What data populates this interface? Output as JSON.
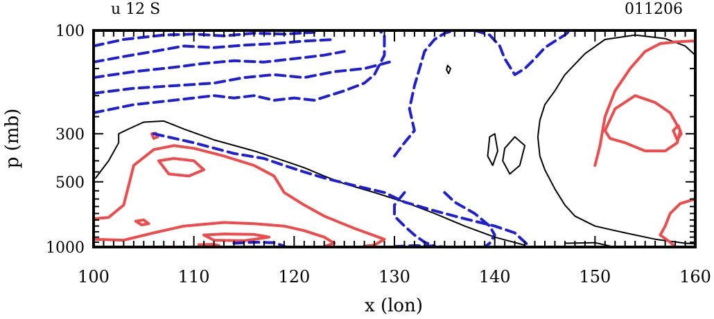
{
  "header": {
    "left_label": "u 12 S",
    "right_label": "011206"
  },
  "chart_data": {
    "type": "contour",
    "xlabel": "x (lon)",
    "ylabel": "p (mb)",
    "xlim": [
      100,
      160
    ],
    "ylim": [
      100,
      1000
    ],
    "yscale": "log",
    "x_ticks": [
      100,
      110,
      120,
      130,
      140,
      150,
      160
    ],
    "y_ticks": [
      100,
      300,
      500,
      1000
    ],
    "grid": false,
    "series": [
      {
        "name": "zero",
        "color": "#000000",
        "style": "solid",
        "contours": [
          [
            [
              100.2,
              480
            ],
            [
              101.5,
              400
            ],
            [
              102.5,
              330
            ],
            [
              102.5,
              300
            ],
            [
              103.5,
              285
            ],
            [
              105,
              265
            ],
            [
              107,
              262
            ],
            [
              109,
              285
            ],
            [
              112,
              320
            ],
            [
              116,
              360
            ],
            [
              119,
              400
            ],
            [
              121,
              430
            ],
            [
              123,
              470
            ],
            [
              125,
              510
            ],
            [
              128,
              560
            ],
            [
              131,
              620
            ],
            [
              134,
              700
            ],
            [
              137,
              800
            ],
            [
              140,
              900
            ],
            [
              143,
              980
            ]
          ],
          [
            [
              147,
              960
            ],
            [
              150,
              955
            ],
            [
              151.5,
              990
            ]
          ],
          [
            [
              160,
              130
            ],
            [
              159,
              118
            ],
            [
              157,
              109
            ],
            [
              154,
              105
            ],
            [
              151,
              110
            ],
            [
              149,
              128
            ],
            [
              147,
              160
            ],
            [
              146,
              190
            ],
            [
              145,
              220
            ],
            [
              144.5,
              260
            ],
            [
              144.3,
              310
            ],
            [
              144.5,
              380
            ],
            [
              145,
              440
            ],
            [
              146,
              540
            ],
            [
              147,
              640
            ],
            [
              148,
              720
            ],
            [
              150,
              800
            ],
            [
              153,
              860
            ],
            [
              156,
              920
            ],
            [
              159,
              960
            ],
            [
              160,
              965
            ]
          ],
          [
            [
              141,
              350
            ],
            [
              142,
              310
            ],
            [
              143,
              340
            ],
            [
              142.5,
              420
            ],
            [
              141.5,
              460
            ],
            [
              140.8,
              400
            ],
            [
              141,
              350
            ]
          ],
          [
            [
              139.5,
              310
            ],
            [
              140,
              300
            ],
            [
              140.3,
              360
            ],
            [
              139.8,
              420
            ],
            [
              139.3,
              380
            ],
            [
              139.5,
              310
            ]
          ],
          [
            [
              135.3,
              145
            ],
            [
              135.6,
              150
            ],
            [
              135.4,
              158
            ],
            [
              135.2,
              152
            ],
            [
              135.3,
              145
            ]
          ]
        ]
      },
      {
        "name": "positive",
        "color": "#f04a4a",
        "style": "solid",
        "contours": [
          [
            [
              100,
              740
            ],
            [
              101.5,
              730
            ],
            [
              103,
              640
            ],
            [
              103.5,
              520
            ],
            [
              104,
              420
            ],
            [
              106,
              355
            ],
            [
              108,
              340
            ],
            [
              110,
              350
            ],
            [
              113,
              380
            ],
            [
              116,
              420
            ],
            [
              118,
              470
            ],
            [
              119,
              560
            ],
            [
              121,
              640
            ],
            [
              123,
              720
            ],
            [
              126,
              820
            ],
            [
              129,
              920
            ],
            [
              128,
              980
            ],
            [
              127,
              990
            ]
          ],
          [
            [
              100,
              920
            ],
            [
              103,
              930
            ],
            [
              106,
              860
            ],
            [
              109,
              800
            ],
            [
              113,
              770
            ],
            [
              116,
              780
            ],
            [
              119,
              800
            ],
            [
              121,
              840
            ],
            [
              123,
              900
            ],
            [
              124,
              960
            ],
            [
              123,
              995
            ]
          ],
          [
            [
              106.5,
              400
            ],
            [
              108,
              390
            ],
            [
              110,
              400
            ],
            [
              111,
              440
            ],
            [
              109.5,
              470
            ],
            [
              107.5,
              460
            ],
            [
              106.5,
              400
            ]
          ],
          [
            [
              111,
              880
            ],
            [
              113,
              870
            ],
            [
              116,
              875
            ],
            [
              117.5,
              900
            ],
            [
              115,
              935
            ],
            [
              112,
              930
            ],
            [
              111,
              880
            ]
          ],
          [
            [
              110.5,
              975
            ],
            [
              112,
              972
            ],
            [
              112.5,
              985
            ],
            [
              111,
              990
            ],
            [
              110.5,
              975
            ]
          ],
          [
            [
              104.2,
              760
            ],
            [
              105,
              750
            ],
            [
              105.5,
              780
            ],
            [
              104.8,
              790
            ],
            [
              104.2,
              760
            ]
          ],
          [
            [
              105.8,
              300
            ],
            [
              106.2,
              298
            ],
            [
              106.4,
              310
            ],
            [
              106,
              315
            ],
            [
              105.8,
              300
            ]
          ],
          [
            [
              150,
              420
            ],
            [
              150.5,
              340
            ],
            [
              151,
              250
            ],
            [
              152,
              190
            ],
            [
              153.5,
              150
            ],
            [
              155,
              125
            ],
            [
              156.5,
              115
            ],
            [
              158,
              113
            ],
            [
              159.5,
              112
            ],
            [
              160,
              112
            ]
          ],
          [
            [
              160,
              600
            ],
            [
              158.5,
              630
            ],
            [
              157.5,
              700
            ],
            [
              157,
              800
            ],
            [
              156.5,
              880
            ],
            [
              157.5,
              950
            ],
            [
              158,
              1000
            ]
          ],
          [
            [
              151,
              290
            ],
            [
              152,
              230
            ],
            [
              154,
              200
            ],
            [
              156,
              215
            ],
            [
              157.5,
              240
            ],
            [
              158.5,
              290
            ],
            [
              158.2,
              330
            ],
            [
              157,
              360
            ],
            [
              155,
              360
            ],
            [
              153,
              330
            ],
            [
              151.5,
              315
            ],
            [
              151,
              290
            ]
          ],
          [
            [
              157.8,
              290
            ],
            [
              158.3,
              275
            ],
            [
              158.6,
              300
            ],
            [
              158.2,
              320
            ],
            [
              157.8,
              290
            ]
          ]
        ]
      },
      {
        "name": "negative",
        "color": "#1e1ed6",
        "style": "dashed",
        "contours": [
          [
            [
              100,
              118
            ],
            [
              103,
              110
            ],
            [
              107,
              105
            ],
            [
              110,
              104
            ],
            [
              113,
              106
            ],
            [
              116,
              103
            ],
            [
              119,
              104
            ],
            [
              122,
              102
            ]
          ],
          [
            [
              100,
              140
            ],
            [
              103,
              132
            ],
            [
              106,
              125
            ],
            [
              109,
              118
            ],
            [
              112,
              120
            ],
            [
              115,
              117
            ],
            [
              118,
              115
            ],
            [
              121,
              112
            ],
            [
              124,
              110
            ]
          ],
          [
            [
              100,
              165
            ],
            [
              104,
              155
            ],
            [
              108,
              148
            ],
            [
              111,
              142
            ],
            [
              114,
              138
            ],
            [
              117,
              140
            ],
            [
              120,
              135
            ],
            [
              123,
              130
            ],
            [
              125,
              125
            ]
          ],
          [
            [
              100,
              195
            ],
            [
              104,
              185
            ],
            [
              108,
              180
            ],
            [
              112,
              175
            ],
            [
              115,
              165
            ],
            [
              118,
              160
            ],
            [
              121,
              165
            ],
            [
              124,
              155
            ],
            [
              127,
              150
            ],
            [
              129.5,
              140
            ]
          ],
          [
            [
              100,
              240
            ],
            [
              104,
              220
            ],
            [
              108,
              210
            ],
            [
              112,
              200
            ],
            [
              114,
              205
            ],
            [
              116,
              200
            ],
            [
              118,
              210
            ],
            [
              120,
              205
            ],
            [
              122,
              210
            ],
            [
              125,
              190
            ],
            [
              127,
              175
            ],
            [
              128,
              160
            ],
            [
              129,
              130
            ],
            [
              129,
              105
            ],
            [
              128.5,
              100
            ]
          ],
          [
            [
              106,
              300
            ],
            [
              110,
              330
            ],
            [
              114,
              370
            ],
            [
              117,
              390
            ],
            [
              119,
              420
            ],
            [
              121,
              450
            ],
            [
              123,
              480
            ],
            [
              126,
              520
            ],
            [
              129,
              560
            ],
            [
              131,
              620
            ],
            [
              134,
              680
            ],
            [
              137,
              740
            ],
            [
              140,
              800
            ],
            [
              142,
              860
            ],
            [
              143,
              950
            ],
            [
              143.5,
              995
            ]
          ],
          [
            [
              130,
              380
            ],
            [
              131,
              330
            ],
            [
              132,
              290
            ],
            [
              131.5,
              230
            ],
            [
              132,
              180
            ],
            [
              132.5,
              150
            ],
            [
              133,
              125
            ],
            [
              134,
              110
            ],
            [
              135,
              103
            ],
            [
              136,
              100
            ]
          ],
          [
            [
              138,
              100
            ],
            [
              139.5,
              105
            ],
            [
              140.5,
              118
            ],
            [
              141,
              135
            ],
            [
              142,
              160
            ],
            [
              143,
              150
            ],
            [
              144,
              135
            ],
            [
              145,
              120
            ],
            [
              146,
              112
            ],
            [
              147,
              105
            ],
            [
              147.5,
              100
            ]
          ],
          [
            [
              131,
              560
            ],
            [
              130,
              640
            ],
            [
              130,
              720
            ],
            [
              131,
              800
            ],
            [
              132,
              880
            ],
            [
              133,
              950
            ],
            [
              134,
              990
            ]
          ],
          [
            [
              135,
              560
            ],
            [
              136,
              620
            ],
            [
              138,
              700
            ],
            [
              139.5,
              800
            ],
            [
              140,
              880
            ],
            [
              139.5,
              960
            ],
            [
              139,
              1000
            ]
          ],
          [
            [
              114,
              960
            ],
            [
              116,
              950
            ],
            [
              118,
              955
            ],
            [
              119,
              990
            ]
          ],
          [
            [
              130,
              995
            ],
            [
              132,
              985
            ],
            [
              134,
              990
            ],
            [
              135,
              1000
            ]
          ]
        ]
      }
    ]
  }
}
